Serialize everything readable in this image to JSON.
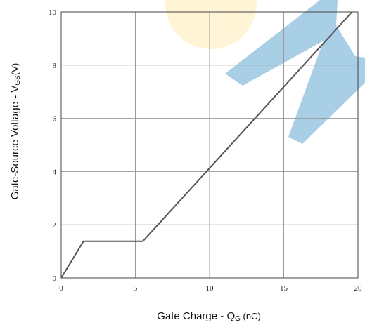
{
  "chart_data": {
    "type": "line",
    "title": "",
    "xlabel": {
      "main": "Gate Charge",
      "sep": " - ",
      "sym": "Q",
      "sub": "G",
      "unit": " (nC)"
    },
    "ylabel": {
      "main": "Gate-Source Voltage",
      "sep": " - ",
      "sym": "V",
      "sub": "GS",
      "unit": "(V)"
    },
    "xlim": [
      0,
      20
    ],
    "ylim": [
      0,
      10
    ],
    "xticks": [
      0,
      5,
      10,
      15,
      20
    ],
    "yticks": [
      0,
      2,
      4,
      6,
      8,
      10
    ],
    "grid": true,
    "series": [
      {
        "color": "#555555",
        "x": [
          0,
          1.5,
          5.5,
          19.6
        ],
        "y": [
          0,
          1.38,
          1.38,
          10
        ]
      }
    ]
  },
  "watermark": {
    "colors": {
      "blue": "#a9cfe6",
      "yellow": "#fff4d6"
    }
  }
}
